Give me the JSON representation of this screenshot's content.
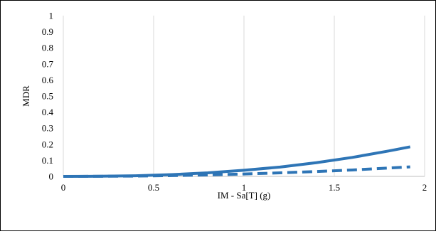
{
  "chart_data": {
    "type": "line",
    "xlabel": "IM - Sa[T] (g)",
    "ylabel": "MDR",
    "xlim": [
      0,
      2
    ],
    "ylim": [
      0,
      1
    ],
    "x_ticks": [
      0,
      0.5,
      1,
      1.5,
      2
    ],
    "x_tick_labels": [
      "0",
      "0.5",
      "1",
      "1.5",
      "2"
    ],
    "y_ticks": [
      0,
      0.1,
      0.2,
      0.3,
      0.4,
      0.5,
      0.6,
      0.7,
      0.8,
      0.9,
      1
    ],
    "y_tick_labels": [
      "0",
      "0.1",
      "0.2",
      "0.3",
      "0.4",
      "0.5",
      "0.6",
      "0.7",
      "0.8",
      "0.9",
      "1"
    ],
    "grid": "vertical",
    "legend": "none",
    "series": [
      {
        "style": "solid",
        "color": "#2E75B6",
        "x": [
          0,
          0.2,
          0.4,
          0.6,
          0.8,
          1.0,
          1.2,
          1.4,
          1.6,
          1.8,
          1.92
        ],
        "y": [
          0.0,
          0.001,
          0.004,
          0.011,
          0.022,
          0.038,
          0.058,
          0.085,
          0.118,
          0.158,
          0.184
        ]
      },
      {
        "style": "dashed",
        "color": "#2E75B6",
        "x": [
          0,
          0.2,
          0.4,
          0.6,
          0.8,
          1.0,
          1.2,
          1.4,
          1.6,
          1.8,
          1.92
        ],
        "y": [
          0.0,
          0.0005,
          0.002,
          0.005,
          0.009,
          0.015,
          0.022,
          0.03,
          0.04,
          0.052,
          0.059
        ]
      }
    ]
  }
}
